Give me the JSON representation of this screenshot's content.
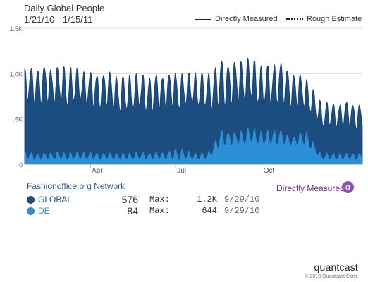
{
  "chart_data": {
    "type": "area",
    "title": "Daily Global People",
    "subtitle": "1/21/10 - 1/15/11",
    "legend": [
      {
        "label": "Directly Measured",
        "style": "solid"
      },
      {
        "label": "Rough Estimate",
        "style": "dotted"
      }
    ],
    "legend_position": "top-right",
    "y_ticks": [
      "0",
      ".5K",
      "1.0K",
      "1.5K"
    ],
    "y_tick_values": [
      0,
      500,
      1000,
      1500
    ],
    "ylim": [
      0,
      1500
    ],
    "x_ticks": [
      "Apr",
      "Jul",
      "Oct"
    ],
    "x_tick_days": [
      70,
      161,
      253
    ],
    "xlim_days": [
      0,
      360
    ],
    "grid": "horizontal",
    "series": [
      {
        "name": "GLOBAL",
        "color": "#1c4d80",
        "x_days": [
          0,
          15,
          30,
          45,
          60,
          75,
          90,
          105,
          120,
          135,
          150,
          165,
          180,
          195,
          210,
          225,
          240,
          255,
          270,
          285,
          300,
          315,
          330,
          345,
          360
        ],
        "values": [
          950,
          900,
          930,
          870,
          940,
          880,
          900,
          820,
          880,
          840,
          880,
          850,
          900,
          860,
          900,
          960,
          980,
          900,
          930,
          880,
          880,
          570,
          560,
          580,
          520
        ],
        "rough_max": [
          1050,
          1080,
          1060,
          1080,
          1040,
          1000,
          1020,
          960,
          1000,
          960,
          1000,
          1000,
          1010,
          990,
          1150,
          1120,
          1180,
          1060,
          1140,
          1020,
          950,
          700,
          660,
          690,
          650
        ],
        "rough_min": [
          700,
          680,
          700,
          640,
          700,
          620,
          650,
          560,
          620,
          580,
          640,
          620,
          670,
          600,
          650,
          700,
          700,
          650,
          690,
          640,
          640,
          420,
          410,
          430,
          380
        ]
      },
      {
        "name": "DE",
        "color": "#2a8fd4",
        "x_days": [
          0,
          15,
          30,
          45,
          60,
          75,
          90,
          105,
          120,
          135,
          150,
          165,
          180,
          195,
          210,
          225,
          240,
          255,
          270,
          285,
          300,
          315,
          330,
          345,
          360
        ],
        "values": [
          95,
          90,
          95,
          90,
          95,
          90,
          95,
          90,
          95,
          90,
          95,
          90,
          95,
          90,
          280,
          270,
          285,
          270,
          280,
          270,
          280,
          95,
          90,
          95,
          90
        ],
        "rough_max": [
          140,
          120,
          135,
          130,
          140,
          130,
          130,
          125,
          135,
          130,
          140,
          180,
          130,
          130,
          380,
          350,
          420,
          360,
          400,
          300,
          380,
          130,
          120,
          125,
          120
        ],
        "rough_min": [
          60,
          55,
          60,
          55,
          60,
          55,
          60,
          55,
          60,
          55,
          60,
          55,
          60,
          55,
          220,
          220,
          230,
          220,
          225,
          215,
          225,
          60,
          55,
          60,
          55
        ]
      }
    ]
  },
  "network": {
    "title": "Fashionoffice.org Network"
  },
  "rows": [
    {
      "name": "GLOBAL",
      "value": "576",
      "max_label": "Max:",
      "max_value": "1.2K",
      "date": "9/29/10",
      "color": "#1c4d80"
    },
    {
      "name": "DE",
      "value": "84",
      "max_label": "Max:",
      "max_value": "644",
      "date": "9/29/10",
      "color": "#2a8fd4"
    }
  ],
  "directly_measured": {
    "label": "Directly Measured",
    "badge": "α"
  },
  "brand": {
    "name": "quantcast",
    "copyright": "© 2010 Quantcast Corp."
  }
}
